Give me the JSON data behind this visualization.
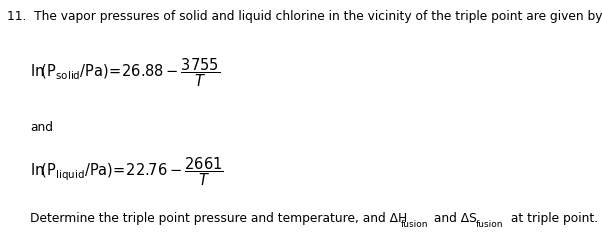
{
  "figsize": [
    6.02,
    2.4
  ],
  "dpi": 100,
  "background_color": "#ffffff",
  "line1": "11.  The vapor pressures of solid and liquid chlorine in the vicinity of the triple point are given by",
  "eq1_mathtext": "$\\mathrm{ln}\\!\\left(\\mathrm{P_{solid}/Pa}\\right)\\!=\\!26.88-\\dfrac{3755}{T}$",
  "eq2_mathtext": "$\\mathrm{ln}\\!\\left(\\mathrm{P_{liquid}/Pa}\\right)\\!=\\!22.76-\\dfrac{2661}{T}$",
  "and_text": "and",
  "last_p1": "Determine the triple point pressure and temperature, and ΔH",
  "last_sub1": "fusion",
  "last_p2": " and ΔS",
  "last_sub2": "fusion",
  "last_p3": " at triple point.",
  "fs_title": 8.8,
  "fs_eq": 10.5,
  "fs_and": 8.8,
  "fs_last": 8.8,
  "fs_subscript": 6.5
}
